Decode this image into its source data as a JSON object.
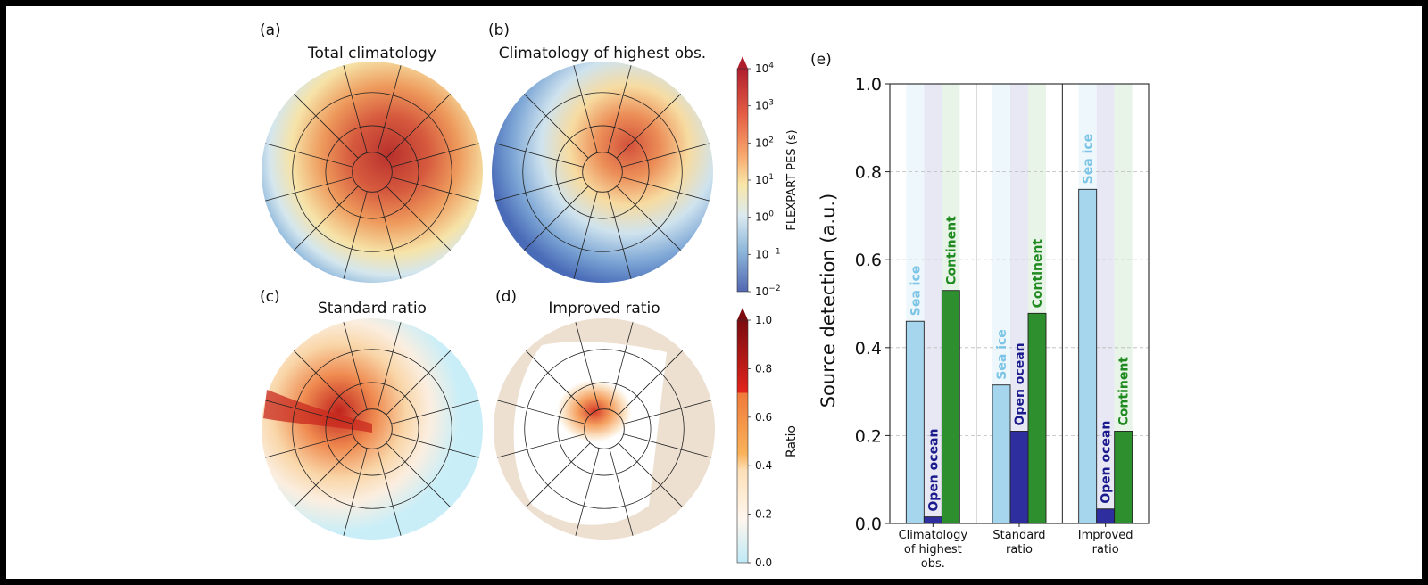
{
  "panels": {
    "a": {
      "letter": "(a)",
      "title": "Total climatology"
    },
    "b": {
      "letter": "(b)",
      "title": "Climatology of highest obs."
    },
    "c": {
      "letter": "(c)",
      "title": "Standard ratio"
    },
    "d": {
      "letter": "(d)",
      "title": "Improved ratio"
    },
    "e": {
      "letter": "(e)"
    }
  },
  "colors": {
    "sea_ice": "#a6d6ee",
    "open_ocean": "#2e2e9e",
    "continent": "#2e8f2e",
    "sea_ice_label": "#7cc5e6",
    "open_ocean_label": "#1a1a8c",
    "continent_label": "#1f8a1f",
    "sea_ice_band": "#eef7fb",
    "open_ocean_band": "#e8e8f5",
    "continent_band": "#e8f4e8"
  },
  "colorbars": {
    "pes": {
      "label": "FLEXPART PES (s)",
      "ticks": [
        {
          "base": "10",
          "exp": "4"
        },
        {
          "base": "10",
          "exp": "3"
        },
        {
          "base": "10",
          "exp": "2"
        },
        {
          "base": "10",
          "exp": "1"
        },
        {
          "base": "10",
          "exp": "0"
        },
        {
          "base": "10",
          "exp": "−1"
        },
        {
          "base": "10",
          "exp": "−2"
        }
      ]
    },
    "ratio": {
      "label": "Ratio",
      "ticks": [
        "1.0",
        "0.8",
        "0.6",
        "0.4",
        "0.2",
        "0.0"
      ]
    }
  },
  "chart_data": {
    "type": "bar",
    "ylabel": "Source detection (a.u.)",
    "ylim": [
      0,
      1
    ],
    "yticks": [
      "0.0",
      "0.2",
      "0.4",
      "0.6",
      "0.8",
      "1.0"
    ],
    "grid": true,
    "categories": [
      {
        "lines": [
          "Climatology",
          "of highest",
          "obs."
        ]
      },
      {
        "lines": [
          "Standard",
          "ratio"
        ]
      },
      {
        "lines": [
          "Improved",
          "ratio"
        ]
      }
    ],
    "series": [
      {
        "name": "Sea ice",
        "values": [
          0.46,
          0.315,
          0.76
        ]
      },
      {
        "name": "Open ocean",
        "values": [
          0.015,
          0.21,
          0.033
        ]
      },
      {
        "name": "Continent",
        "values": [
          0.53,
          0.478,
          0.21
        ]
      }
    ]
  }
}
